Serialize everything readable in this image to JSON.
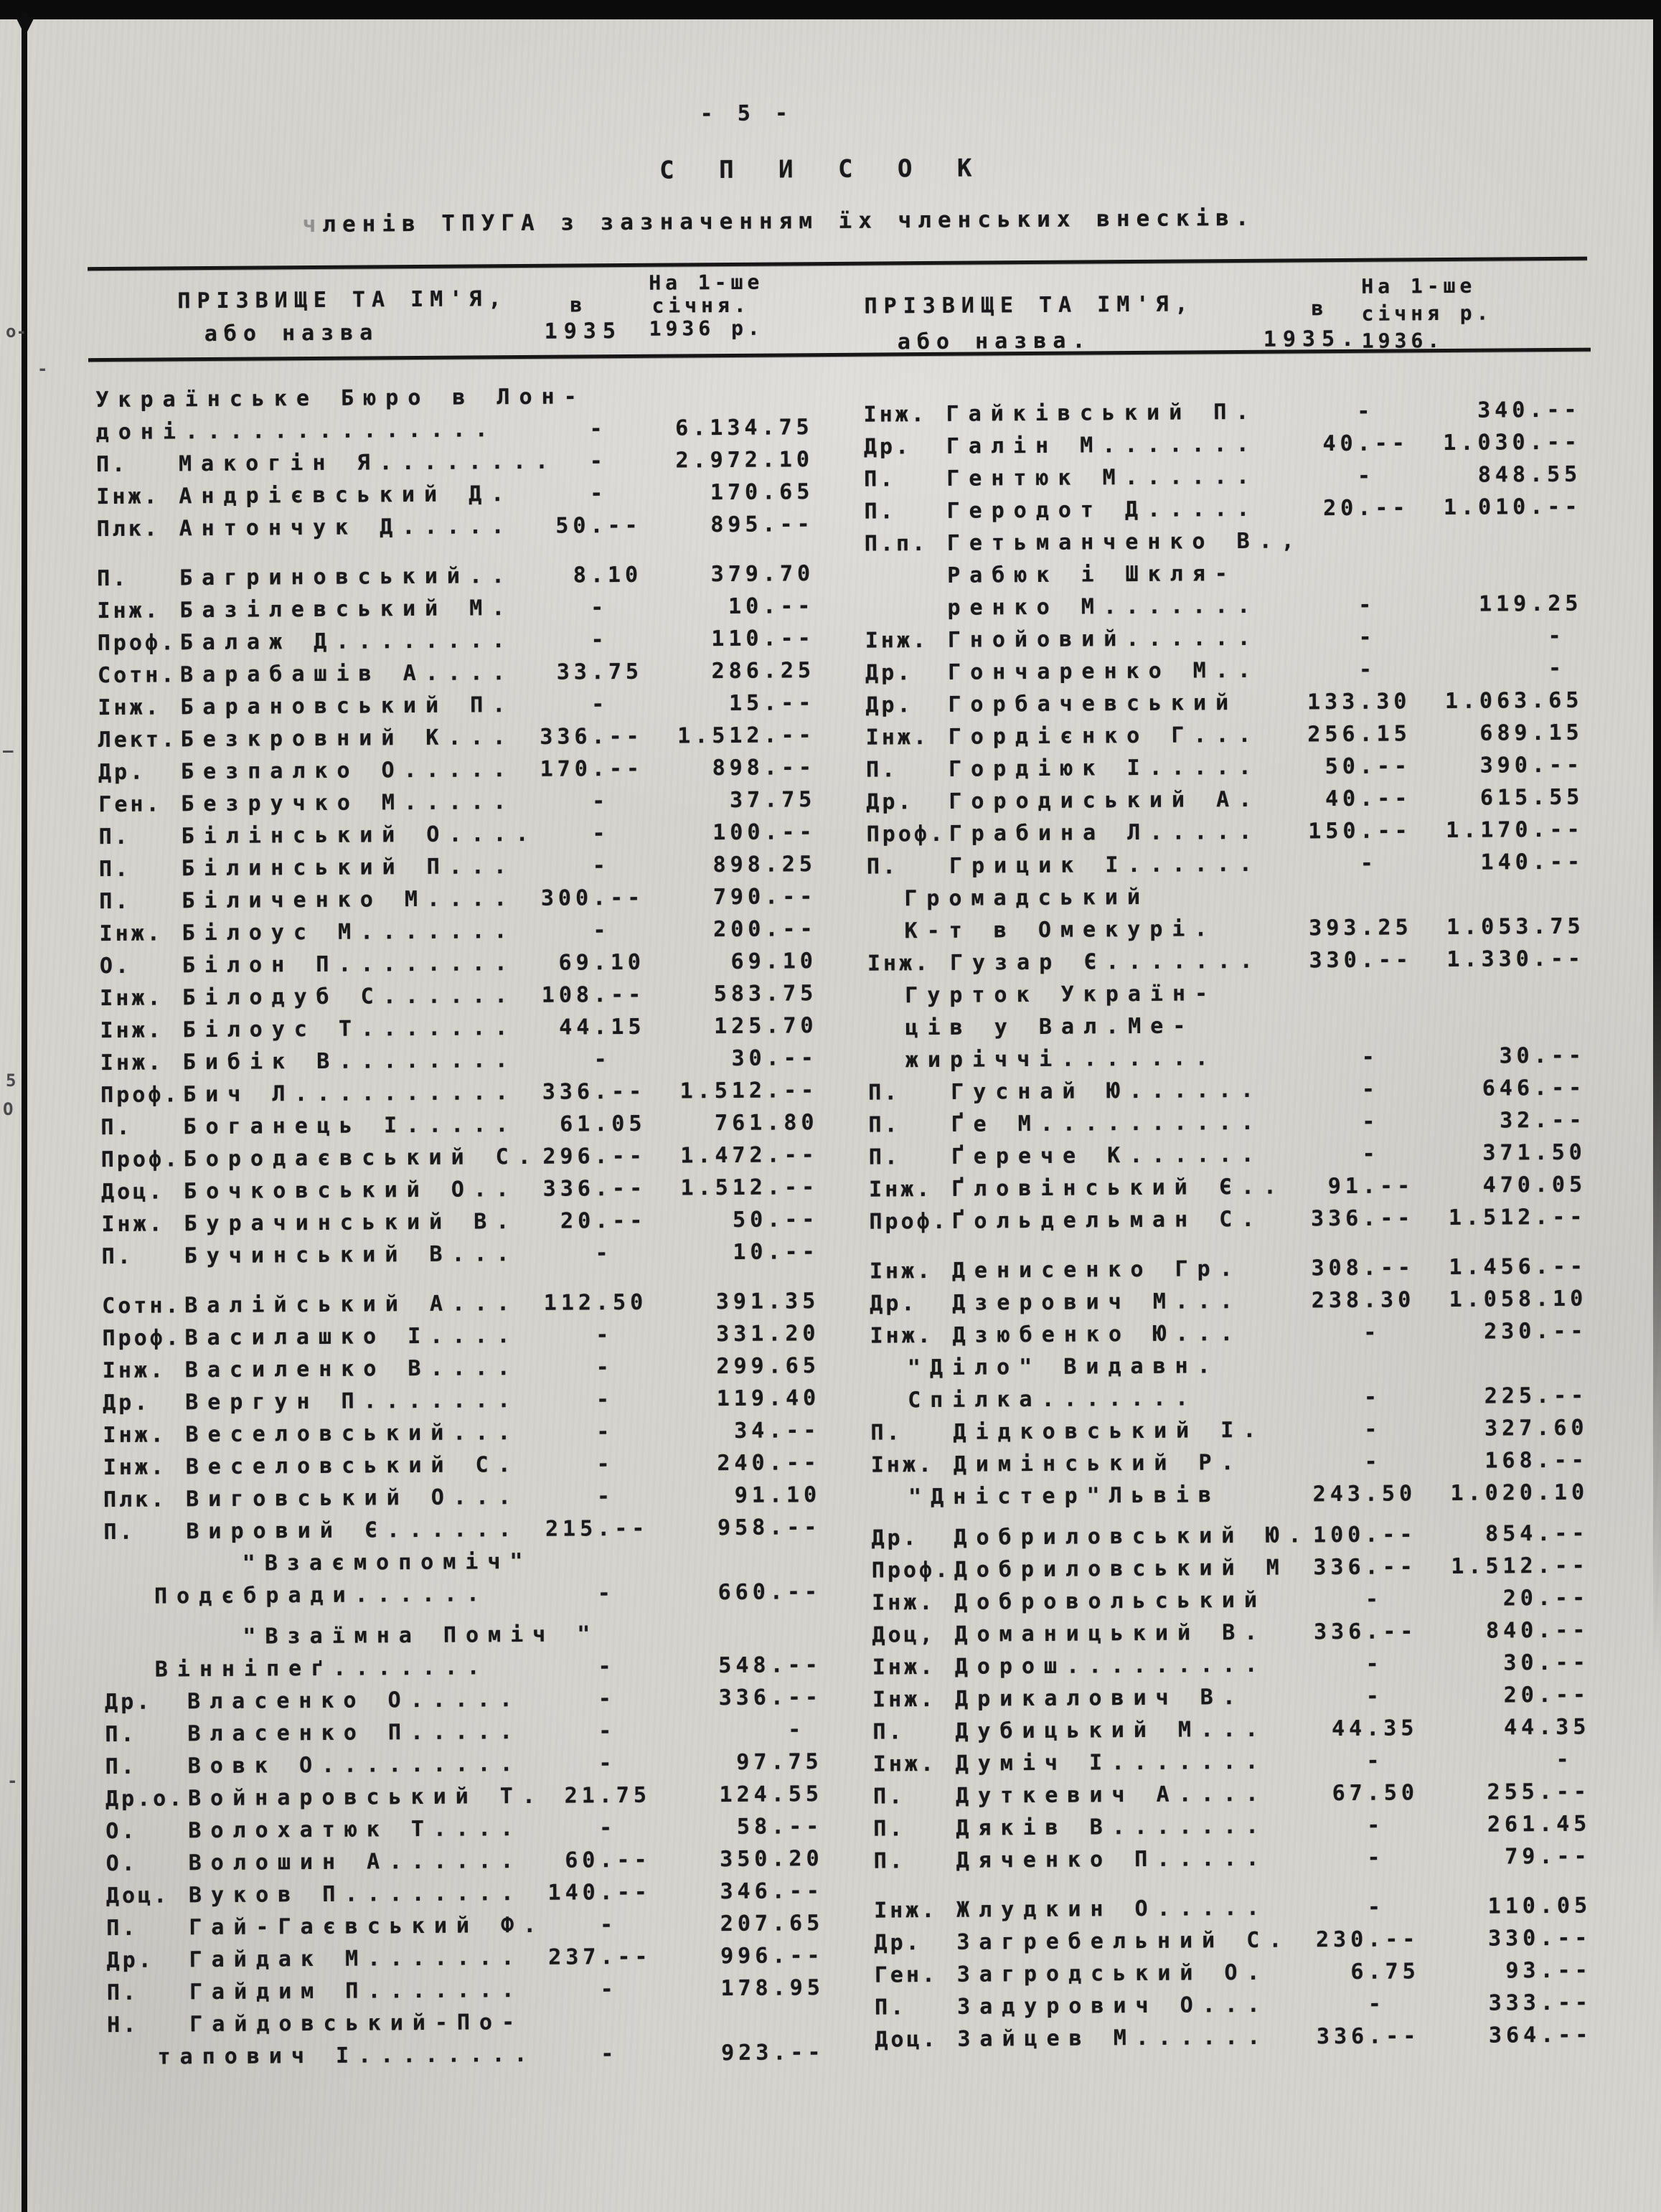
{
  "palette": {
    "paper": "#d5d3ce",
    "ink": "#191919",
    "edge_black": "#0b0b0b"
  },
  "page": {
    "number": "- 5 -",
    "title": "С П И С О К",
    "subtitle_first": "ч",
    "subtitle_rest": "ленів ТПУГА з зазначенням їх членських внесків."
  },
  "header": {
    "left": {
      "name1": "ПРІЗВИЩЕ ТА ІМ'Я,",
      "name2": "або назва",
      "v": "в",
      "y1935": "1935",
      "l1": "На 1-ше",
      "l2": "січня.",
      "l3": "1936 р."
    },
    "right": {
      "name1": "ПРІЗВИЩЕ ТА ІМ'Я,",
      "name2": "або назва.",
      "v": "в",
      "y1935": "1935.",
      "l1": "На 1-ше",
      "l2": "січня р.",
      "l3": "1936."
    }
  },
  "marks": {
    "m1": "о-",
    "m2": "-",
    "m3": "—",
    "m4": "5",
    "m5": "О",
    "m6": "-"
  },
  "left_rows": [
    {
      "n": "Українське Бюро в Лон-",
      "cls": "ln full"
    },
    {
      "n": "доні..............",
      "a": "-  ",
      "b": "6.134.75",
      "cls": "ln full"
    },
    {
      "p": "П.",
      "n": "Макогін Я........",
      "a": "-  ",
      "b": "2.972.10"
    },
    {
      "p": "Інж.",
      "n": "Андрієвський Д.",
      "a": "-  ",
      "b": "170.65"
    },
    {
      "p": "Плк.",
      "n": "Антончук Д.....",
      "a": "50.--",
      "b": "895.--"
    },
    {
      "p": "П.",
      "n": "Багриновський..",
      "a": "8.10",
      "b": "379.70",
      "cls": "ln gap"
    },
    {
      "p": "Інж.",
      "n": "Базілевський М.",
      "a": "-  ",
      "b": "10.--"
    },
    {
      "p": "Проф.",
      "n": "Балаж Д........",
      "a": "-  ",
      "b": "110.--"
    },
    {
      "p": "Сотн.",
      "n": "Варабашів А....",
      "a": "33.75",
      "b": "286.25"
    },
    {
      "p": "Інж.",
      "n": "Барановський П.",
      "a": "-  ",
      "b": "15.--"
    },
    {
      "p": "Лект.",
      "n": "Безкровний К...",
      "a": "336.--",
      "b": "1.512.--"
    },
    {
      "p": "Др.",
      "n": "Безпалко О.....",
      "a": "170.--",
      "b": "898.--"
    },
    {
      "p": "Ген.",
      "n": "Безручко М.....",
      "a": "-  ",
      "b": "37.75"
    },
    {
      "p": "П.",
      "n": "Білінський О....",
      "a": "-  ",
      "b": "100.--"
    },
    {
      "p": "П.",
      "n": "Білинський П...",
      "a": "-  ",
      "b": "898.25"
    },
    {
      "p": "П.",
      "n": "Біличенко М....",
      "a": "300.--",
      "b": "790.--"
    },
    {
      "p": "Інж.",
      "n": "Білоус М.......",
      "a": "-  ",
      "b": "200.--"
    },
    {
      "p": "О.",
      "n": "Білон П........",
      "a": "69.10",
      "b": "69.10"
    },
    {
      "p": "Інж.",
      "n": "Білодуб С......",
      "a": "108.--",
      "b": "583.75"
    },
    {
      "p": "Інж.",
      "n": "Білоус Т.......",
      "a": "44.15",
      "b": "125.70"
    },
    {
      "p": "Інж.",
      "n": "Бибік В........",
      "a": "-  ",
      "b": "30.--"
    },
    {
      "p": "Проф.",
      "n": "Бич Л..........",
      "a": "336.--",
      "b": "1.512.--"
    },
    {
      "p": "П.",
      "n": "Боганець І.....",
      "a": "61.05",
      "b": "761.80"
    },
    {
      "p": "Проф.",
      "n": "Бородаєвський С.",
      "a": "296.--",
      "b": "1.472.--"
    },
    {
      "p": "Доц.",
      "n": "Бочковський О..",
      "a": "336.--",
      "b": "1.512.--"
    },
    {
      "p": "Інж.",
      "n": "Бурачинський В.",
      "a": "20.--",
      "b": "50.--"
    },
    {
      "p": "П.",
      "n": "Бучинський В...",
      "a": "-  ",
      "b": "10.--"
    },
    {
      "p": "Сотн.",
      "n": "Валійський А...",
      "a": "112.50",
      "b": "391.35",
      "cls": "ln gap"
    },
    {
      "p": "Проф.",
      "n": "Василашко І....",
      "a": "-  ",
      "b": "331.20"
    },
    {
      "p": "Інж.",
      "n": "Василенко В....",
      "a": "-  ",
      "b": "299.65"
    },
    {
      "p": "Др.",
      "n": "Вергун П.......",
      "a": "-  ",
      "b": "119.40"
    },
    {
      "p": "Інж.",
      "n": "Веселовський...",
      "a": "-  ",
      "b": "34.--"
    },
    {
      "p": "Інж.",
      "n": "Веселовський С.",
      "a": "-  ",
      "b": "240.--"
    },
    {
      "p": "Плк.",
      "n": "Виговський О...",
      "a": "-  ",
      "b": "91.10"
    },
    {
      "p": "П.",
      "n": "Вировий Є......",
      "a": "215.--",
      "b": "958.--"
    },
    {
      "n": "\"Взаємопоміч\"",
      "cls": "ln q"
    },
    {
      "n": "Подєбради......",
      "a": "-  ",
      "b": "660.--",
      "cls": "ln i2"
    },
    {
      "n": "\"Взаїмна Поміч \"",
      "cls": "ln q gapS"
    },
    {
      "n": "Вінніпеґ.......",
      "a": "-  ",
      "b": "548.--",
      "cls": "ln i2"
    },
    {
      "p": "Др.",
      "n": "Власенко О.....",
      "a": "-  ",
      "b": "336.--"
    },
    {
      "p": "П.",
      "n": "Власенко П.....",
      "a": "-  ",
      "b": "- "
    },
    {
      "p": "П.",
      "n": "Вовк О.........",
      "a": "-  ",
      "b": "97.75"
    },
    {
      "p": "Др.о.",
      "n": "Войнаровський Т.",
      "a": "21.75",
      "b": "124.55"
    },
    {
      "p": "О.",
      "n": "Волохатюк Т....",
      "a": "-  ",
      "b": "58.--"
    },
    {
      "p": "О.",
      "n": "Волошин А......",
      "a": "60.--",
      "b": "350.20"
    },
    {
      "p": "Доц.",
      "n": "Вуков П........",
      "a": "140.--",
      "b": "346.--"
    },
    {
      "p": "П.",
      "n": "Гай-Гаєвський Ф.",
      "a": "-  ",
      "b": "207.65"
    },
    {
      "p": "Др.",
      "n": "Гайдак М.......",
      "a": "237.--",
      "b": "996.--"
    },
    {
      "p": "П.",
      "n": "Гайдим П.......",
      "a": "-  ",
      "b": "178.95"
    },
    {
      "p": "Н.",
      "n": "Гайдовський-По-"
    },
    {
      "n": "тапович І........",
      "a": "-  ",
      "b": "923.--",
      "cls": "ln i2"
    }
  ],
  "right_rows": [
    {
      "p": "Інж.",
      "n": "Гайківський П.",
      "a": "-  ",
      "b": "340.--"
    },
    {
      "p": "Др.",
      "n": "Галін М.......",
      "a": "40.--",
      "b": "1.030.--"
    },
    {
      "p": "П.",
      "n": "Гентюк М......",
      "a": "-  ",
      "b": "848.55"
    },
    {
      "p": "П.",
      "n": "Геродот Д.....",
      "a": "20.--",
      "b": "1.010.--"
    },
    {
      "p": "П.п.",
      "n": "Гетьманченко В.,"
    },
    {
      "n": "Рабюк і Шкля-"
    },
    {
      "n": "ренко М.......",
      "a": "-  ",
      "b": "119.25"
    },
    {
      "p": "Інж.",
      "n": "Гнойовий......",
      "a": "-  ",
      "b": "- "
    },
    {
      "p": "Др.",
      "n": "Гончаренко М..",
      "a": "-  ",
      "b": "- "
    },
    {
      "p": "Др.",
      "n": "Горбачевський",
      "a": "133.30",
      "b": "1.063.65"
    },
    {
      "p": "Інж.",
      "n": "Гордієнко Г...",
      "a": "256.15",
      "b": "689.15"
    },
    {
      "p": "П.",
      "n": "Гордіюк І.....",
      "a": "50.--",
      "b": "390.--"
    },
    {
      "p": "Др.",
      "n": "Городиський А.",
      "a": "40.--",
      "b": "615.55"
    },
    {
      "p": "Проф.",
      "n": "Грабина Л.....",
      "a": "150.--",
      "b": "1.170.--"
    },
    {
      "p": "П.",
      "n": "Грицик І......",
      "a": "-  ",
      "b": "140.--"
    },
    {
      "n": "Громадський",
      "cls": "ln i2r"
    },
    {
      "n": "К-т в Омекурі.",
      "a": "393.25",
      "b": "1.053.75",
      "cls": "ln i2r"
    },
    {
      "p": "Інж.",
      "n": "Гузар Є.......",
      "a": "330.--",
      "b": "1.330.--"
    },
    {
      "n": "Гурток Україн-",
      "cls": "ln i2r"
    },
    {
      "n": "ців у Вал.Ме-",
      "cls": "ln i2r"
    },
    {
      "n": "жиріччі.......",
      "a": "-  ",
      "b": "30.--",
      "cls": "ln i2r"
    },
    {
      "p": "П.",
      "n": "Гуснай Ю......",
      "a": "-  ",
      "b": "646.--"
    },
    {
      "p": "П.",
      "n": "Ґе М..........",
      "a": "-  ",
      "b": "32.--"
    },
    {
      "p": "П.",
      "n": "Ґерече К......",
      "a": "-  ",
      "b": "371.50"
    },
    {
      "p": "Інж.",
      "n": "Ґловінський Є..",
      "a": "91.--",
      "b": "470.05"
    },
    {
      "p": "Проф.",
      "n": "Ґольдельман С.",
      "a": "336.--",
      "b": "1.512.--"
    },
    {
      "p": "Інж.",
      "n": "Денисенко Гр.",
      "a": "308.--",
      "b": "1.456.--",
      "cls": "ln gap"
    },
    {
      "p": "Др.",
      "n": "Дзерович М...",
      "a": "238.30",
      "b": "1.058.10"
    },
    {
      "p": "Інж.",
      "n": "Дзюбенко Ю...",
      "a": "-  ",
      "b": "230.--"
    },
    {
      "n": "\"Діло\" Видавн.",
      "cls": "ln i2r"
    },
    {
      "n": "Спілка.......",
      "a": "-  ",
      "b": "225.--",
      "cls": "ln i2r"
    },
    {
      "p": "П.",
      "n": "Дідковський І.",
      "a": "-  ",
      "b": "327.60"
    },
    {
      "p": "Інж.",
      "n": "Димінський Р.",
      "a": "-  ",
      "b": "168.--"
    },
    {
      "n": "\"Дністер\"Львів",
      "a": "243.50",
      "b": "1.020.10",
      "cls": "ln i2r"
    },
    {
      "p": "Др.",
      "n": "Добриловський Ю.",
      "a": "100.--",
      "b": "854.--",
      "cls": "ln gapS"
    },
    {
      "p": "Проф.",
      "n": "Добриловський М",
      "a": "336.--",
      "b": "1.512.--"
    },
    {
      "p": "Інж.",
      "n": "Добровольський",
      "a": "-  ",
      "b": "20.--"
    },
    {
      "p": "Доц,",
      "n": "Доманицький В.",
      "a": "336.--",
      "b": "840.--"
    },
    {
      "p": "Інж.",
      "n": "Дорош.........",
      "a": "-  ",
      "b": "30.--"
    },
    {
      "p": "Інж.",
      "n": "Дрикалович В.",
      "a": "-  ",
      "b": "20.--"
    },
    {
      "p": "П.",
      "n": "Дубицький М...",
      "a": "44.35",
      "b": "44.35"
    },
    {
      "p": "Інж.",
      "n": "Думіч І.......",
      "a": "-  ",
      "b": "- "
    },
    {
      "p": "П.",
      "n": "Дуткевич А....",
      "a": "67.50",
      "b": "255.--"
    },
    {
      "p": "П.",
      "n": "Дяків В.......",
      "a": "-  ",
      "b": "261.45"
    },
    {
      "p": "П.",
      "n": "Дяченко П.....",
      "a": "-  ",
      "b": "79.--"
    },
    {
      "p": "Інж.",
      "n": "Жлудкин О.....",
      "a": "-  ",
      "b": "110.05",
      "cls": "ln gap"
    },
    {
      "p": "Др.",
      "n": "Загребельний С.",
      "a": "230.--",
      "b": "330.--"
    },
    {
      "p": "Ген.",
      "n": "Загродський О.",
      "a": "6.75",
      "b": "93.--"
    },
    {
      "p": "П.",
      "n": "Задурович О...",
      "a": "-  ",
      "b": "333.--"
    },
    {
      "p": "Доц.",
      "n": "Зайцев М......",
      "a": "336.--",
      "b": "364.--"
    }
  ]
}
